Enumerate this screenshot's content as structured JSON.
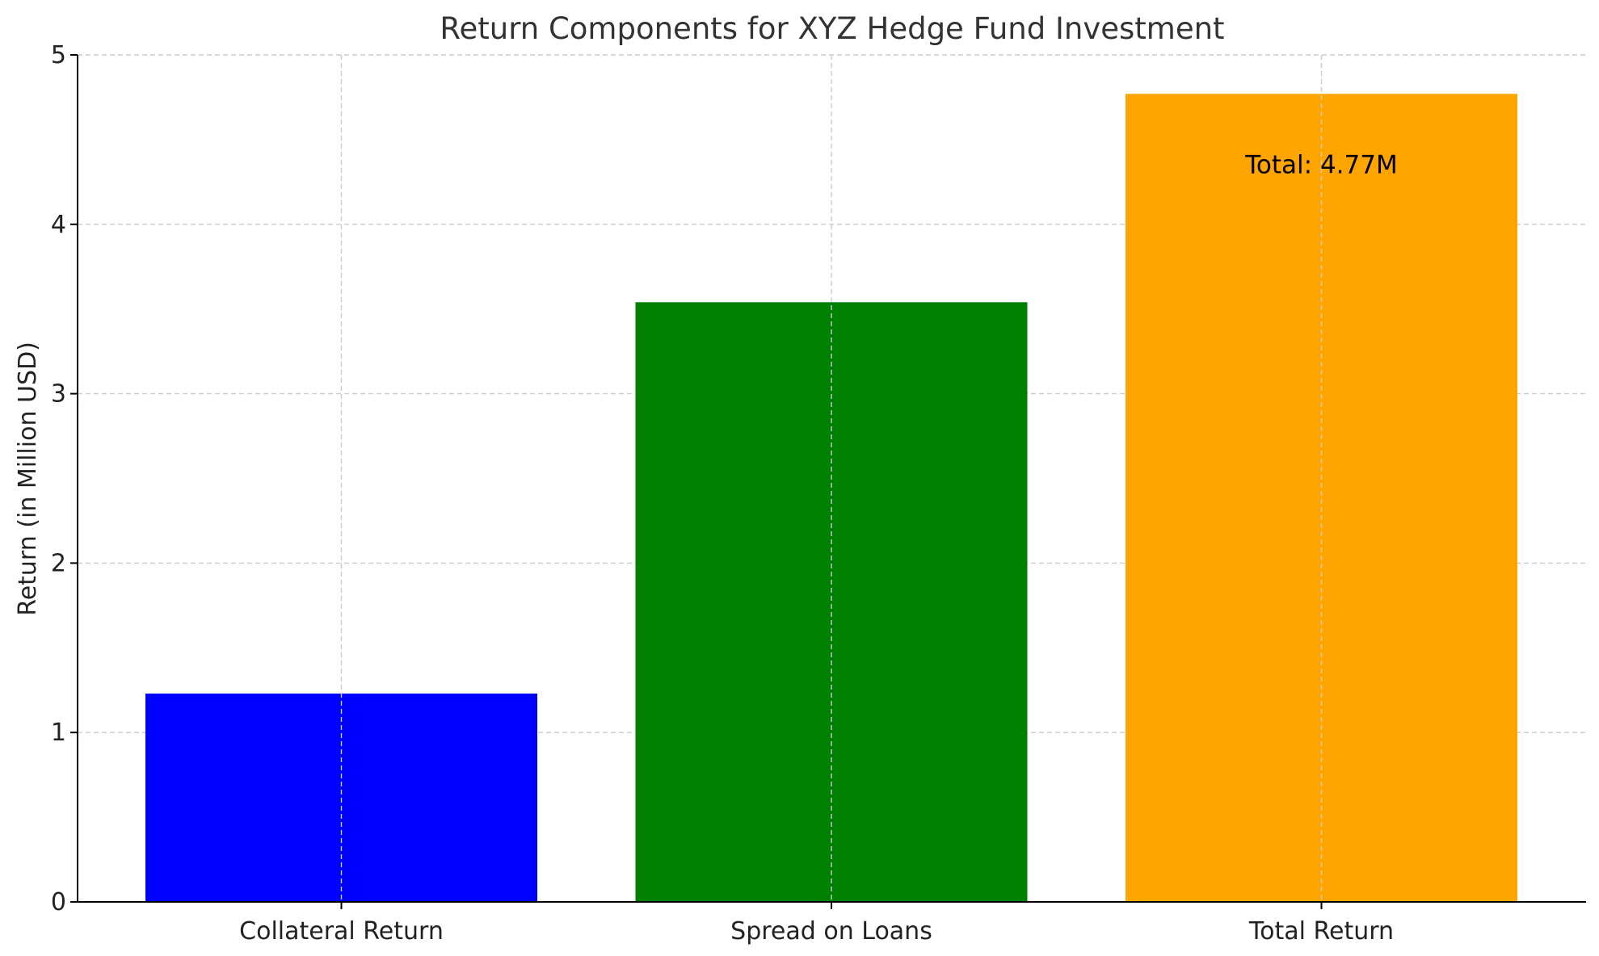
{
  "chart_data": {
    "type": "bar",
    "title": "Return Components for XYZ Hedge Fund Investment",
    "xlabel": "",
    "ylabel": "Return (in Million USD)",
    "categories": [
      "Collateral Return",
      "Spread on Loans",
      "Total Return"
    ],
    "values": [
      1.23,
      3.54,
      4.77
    ],
    "colors": [
      "#0000ff",
      "#008000",
      "#ffa500"
    ],
    "ylim": [
      0,
      5
    ],
    "yticks": [
      0,
      1,
      2,
      3,
      4,
      5
    ],
    "grid": true,
    "annotations": [
      {
        "category": "Total Return",
        "text": "Total: 4.77M"
      }
    ]
  }
}
